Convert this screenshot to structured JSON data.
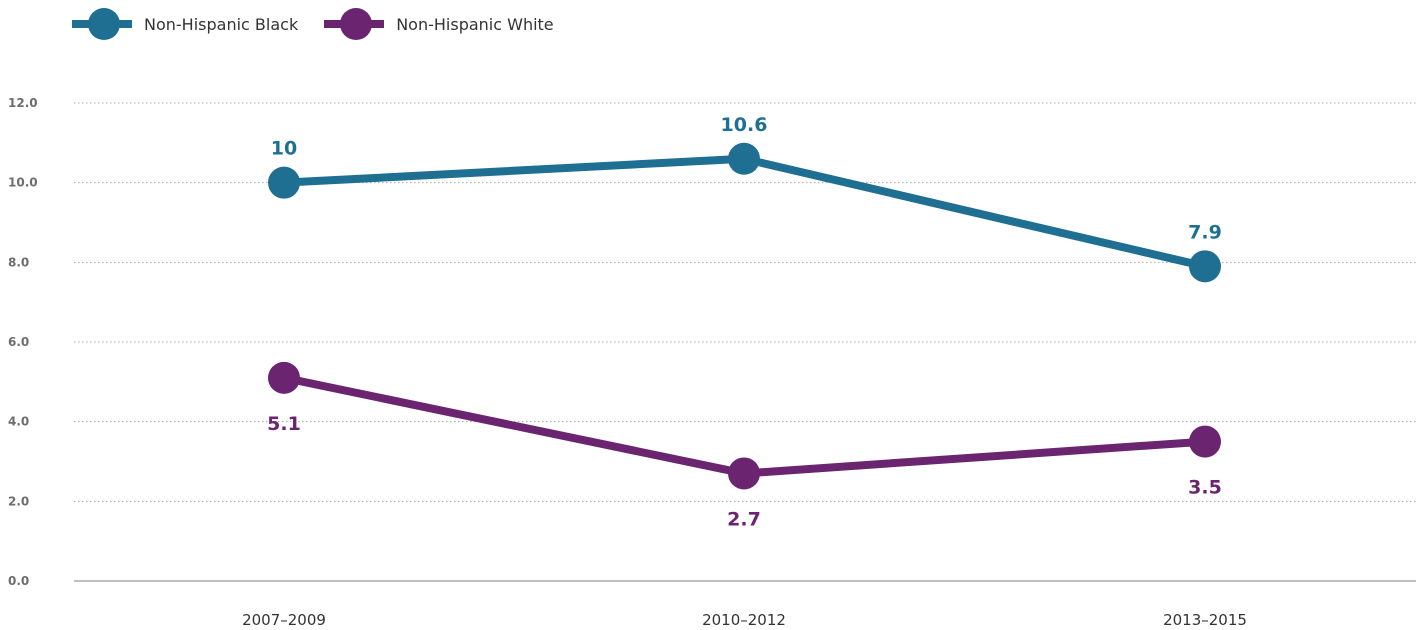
{
  "chart_data": {
    "type": "line",
    "categories": [
      "2007–2009",
      "2010–2012",
      "2013–2015"
    ],
    "series": [
      {
        "name": "Non-Hispanic Black",
        "values": [
          10,
          10.6,
          7.9
        ],
        "color": "#1f6f93",
        "label_position": "above"
      },
      {
        "name": "Non-Hispanic White",
        "values": [
          5.1,
          2.7,
          3.5
        ],
        "color": "#6b2570",
        "label_position": "below"
      }
    ],
    "ylim": [
      0,
      12
    ],
    "yticks": [
      0,
      2,
      4,
      6,
      8,
      10,
      12
    ],
    "ytick_labels": [
      "0.0",
      "2.0",
      "4.0",
      "6.0",
      "8.0",
      "10.0",
      "12.0"
    ],
    "grid": true,
    "legend_position": "top-left",
    "title": "",
    "xlabel": "",
    "ylabel": ""
  }
}
